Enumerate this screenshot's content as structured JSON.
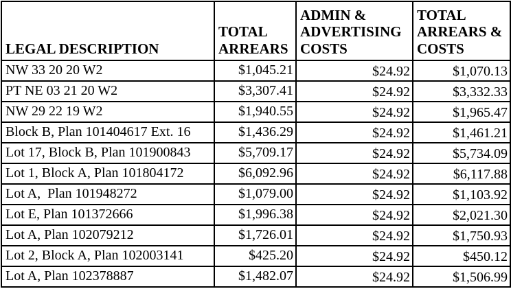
{
  "colors": {
    "border": "#000000",
    "text": "#000000",
    "background": "#ffffff"
  },
  "table": {
    "columns": [
      {
        "label": "LEGAL DESCRIPTION"
      },
      {
        "label": "TOTAL\nARREARS"
      },
      {
        "label": "ADMIN &\nADVERTISING\nCOSTS"
      },
      {
        "label": "TOTAL\nARREARS &\nCOSTS"
      }
    ],
    "rows": [
      {
        "legal": "NW 33 20 20 W2",
        "arrears": "$1,045.21",
        "admin": "$24.92",
        "total": "$1,070.13"
      },
      {
        "legal": "PT NE 03 21 20 W2",
        "arrears": "$3,307.41",
        "admin": "$24.92",
        "total": "$3,332.33"
      },
      {
        "legal": "NW 29 22 19 W2",
        "arrears": "$1,940.55",
        "admin": "$24.92",
        "total": "$1,965.47"
      },
      {
        "legal": "Block B, Plan 101404617 Ext. 16",
        "arrears": "$1,436.29",
        "admin": "$24.92",
        "total": "$1,461.21"
      },
      {
        "legal": "Lot 17, Block B, Plan 101900843",
        "arrears": "$5,709.17",
        "admin": "$24.92",
        "total": "$5,734.09"
      },
      {
        "legal": "Lot 1, Block A, Plan 101804172",
        "arrears": "$6,092.96",
        "admin": "$24.92",
        "total": "$6,117.88"
      },
      {
        "legal": "Lot A,  Plan 101948272",
        "arrears": "$1,079.00",
        "admin": "$24.92",
        "total": "$1,103.92"
      },
      {
        "legal": "Lot E, Plan 101372666",
        "arrears": "$1,996.38",
        "admin": "$24.92",
        "total": "$2,021.30"
      },
      {
        "legal": "Lot A, Plan 102079212",
        "arrears": "$1,726.01",
        "admin": "$24.92",
        "total": "$1,750.93"
      },
      {
        "legal": "Lot 2, Block A, Plan 102003141",
        "arrears": "$425.20",
        "admin": "$24.92",
        "total": "$450.12"
      },
      {
        "legal": "Lot A, Plan 102378887",
        "arrears": "$1,482.07",
        "admin": "$24.92",
        "total": "$1,506.99"
      }
    ]
  }
}
